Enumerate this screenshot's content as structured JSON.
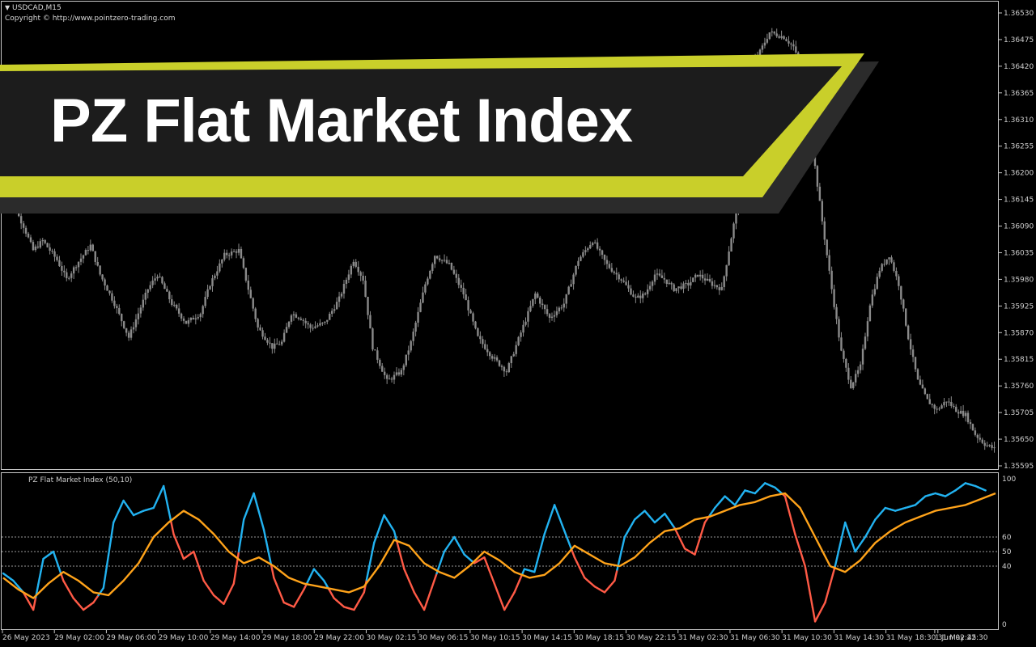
{
  "symbol_label": "USDCAD,M15",
  "copyright": "Copyright © http://www.pointzero-trading.com",
  "banner": {
    "title": "PZ Flat Market Index"
  },
  "colors": {
    "background": "#000000",
    "candle": "#8a8a8a",
    "banner_fill": "#1e1e1e",
    "banner_stripe": "#c9cf2a",
    "indicator_above": "#22b2f0",
    "indicator_below": "#ff5a46",
    "signal": "#ffa31a",
    "level_line": "#9a9a9a"
  },
  "chart_data": [
    {
      "type": "candlestick",
      "title": "USDCAD,M15",
      "y_ticks": [
        "1.36530",
        "1.36475",
        "1.36420",
        "1.36365",
        "1.36310",
        "1.36255",
        "1.36200",
        "1.36145",
        "1.36090",
        "1.36035",
        "1.35980",
        "1.35925",
        "1.35870",
        "1.35815",
        "1.35760",
        "1.35705",
        "1.35650",
        "1.35595"
      ],
      "ylim": [
        1.35595,
        1.3654
      ],
      "close_path": [
        [
          0,
          1.3615
        ],
        [
          4,
          1.3613
        ],
        [
          8,
          1.3609
        ],
        [
          12,
          1.3604
        ],
        [
          16,
          1.3606
        ],
        [
          22,
          1.3602
        ],
        [
          26,
          1.3598
        ],
        [
          30,
          1.3601
        ],
        [
          36,
          1.3605
        ],
        [
          40,
          1.3599
        ],
        [
          46,
          1.3593
        ],
        [
          52,
          1.3586
        ],
        [
          56,
          1.3591
        ],
        [
          60,
          1.3596
        ],
        [
          64,
          1.3599
        ],
        [
          70,
          1.3593
        ],
        [
          76,
          1.3589
        ],
        [
          82,
          1.3591
        ],
        [
          86,
          1.3597
        ],
        [
          92,
          1.3603
        ],
        [
          98,
          1.3604
        ],
        [
          102,
          1.3596
        ],
        [
          106,
          1.3588
        ],
        [
          112,
          1.3584
        ],
        [
          116,
          1.3585
        ],
        [
          120,
          1.3591
        ],
        [
          124,
          1.359
        ],
        [
          128,
          1.3588
        ],
        [
          134,
          1.3589
        ],
        [
          140,
          1.3594
        ],
        [
          146,
          1.3602
        ],
        [
          150,
          1.3598
        ],
        [
          154,
          1.3584
        ],
        [
          160,
          1.3577
        ],
        [
          166,
          1.3579
        ],
        [
          170,
          1.3585
        ],
        [
          176,
          1.3597
        ],
        [
          180,
          1.3603
        ],
        [
          186,
          1.3601
        ],
        [
          192,
          1.3595
        ],
        [
          198,
          1.3586
        ],
        [
          204,
          1.3582
        ],
        [
          210,
          1.3579
        ],
        [
          216,
          1.3587
        ],
        [
          222,
          1.3595
        ],
        [
          228,
          1.359
        ],
        [
          234,
          1.3593
        ],
        [
          240,
          1.3602
        ],
        [
          246,
          1.3606
        ],
        [
          252,
          1.3601
        ],
        [
          258,
          1.3598
        ],
        [
          264,
          1.3594
        ],
        [
          268,
          1.3595
        ],
        [
          272,
          1.3599
        ],
        [
          276,
          1.3598
        ],
        [
          280,
          1.3596
        ],
        [
          286,
          1.3597
        ],
        [
          290,
          1.3599
        ],
        [
          296,
          1.3597
        ],
        [
          300,
          1.3596
        ],
        [
          306,
          1.3612
        ],
        [
          310,
          1.364
        ],
        [
          316,
          1.3645
        ],
        [
          320,
          1.3649
        ],
        [
          326,
          1.3648
        ],
        [
          330,
          1.3646
        ],
        [
          334,
          1.364
        ],
        [
          338,
          1.3625
        ],
        [
          342,
          1.361
        ],
        [
          346,
          1.3596
        ],
        [
          350,
          1.3583
        ],
        [
          354,
          1.3576
        ],
        [
          358,
          1.358
        ],
        [
          362,
          1.3593
        ],
        [
          366,
          1.36
        ],
        [
          370,
          1.3603
        ],
        [
          374,
          1.3597
        ],
        [
          378,
          1.3586
        ],
        [
          382,
          1.3577
        ],
        [
          386,
          1.3573
        ],
        [
          390,
          1.3571
        ],
        [
          394,
          1.3573
        ],
        [
          398,
          1.3571
        ],
        [
          402,
          1.357
        ],
        [
          406,
          1.3566
        ],
        [
          410,
          1.3564
        ],
        [
          414,
          1.3563
        ]
      ],
      "close_path_note_units": [
        "bar index",
        "price"
      ]
    },
    {
      "type": "line",
      "title": "PZ Flat Market Index (50,10)",
      "ylim": [
        0,
        100
      ],
      "y_ticks": [
        "100",
        "60",
        "50",
        "40",
        "0"
      ],
      "levels": [
        60,
        50,
        40
      ],
      "x_tick_labels": [
        "26 May 2023",
        "29 May 02:00",
        "29 May 06:00",
        "29 May 10:00",
        "29 May 14:00",
        "29 May 18:00",
        "29 May 22:00",
        "30 May 02:15",
        "30 May 06:15",
        "30 May 10:15",
        "30 May 14:15",
        "30 May 18:15",
        "30 May 22:15",
        "31 May 02:30",
        "31 May 06:30",
        "31 May 10:30",
        "31 May 14:30",
        "31 May 18:30",
        "31 May 22:30",
        "1 Jun 02:45"
      ],
      "series": [
        {
          "role": "index",
          "values": [
            [
              0,
              35
            ],
            [
              4,
              30
            ],
            [
              8,
              22
            ],
            [
              12,
              10
            ],
            [
              16,
              45
            ],
            [
              20,
              50
            ],
            [
              24,
              30
            ],
            [
              28,
              18
            ],
            [
              32,
              10
            ],
            [
              36,
              15
            ],
            [
              40,
              25
            ],
            [
              44,
              70
            ],
            [
              48,
              85
            ],
            [
              52,
              75
            ],
            [
              56,
              78
            ],
            [
              60,
              80
            ],
            [
              64,
              95
            ],
            [
              68,
              62
            ],
            [
              72,
              45
            ],
            [
              76,
              50
            ],
            [
              80,
              30
            ],
            [
              84,
              20
            ],
            [
              88,
              14
            ],
            [
              92,
              28
            ],
            [
              96,
              72
            ],
            [
              100,
              90
            ],
            [
              104,
              65
            ],
            [
              108,
              32
            ],
            [
              112,
              15
            ],
            [
              116,
              12
            ],
            [
              120,
              24
            ],
            [
              124,
              38
            ],
            [
              128,
              30
            ],
            [
              132,
              18
            ],
            [
              136,
              12
            ],
            [
              140,
              10
            ],
            [
              144,
              22
            ],
            [
              148,
              56
            ],
            [
              152,
              75
            ],
            [
              156,
              64
            ],
            [
              160,
              38
            ],
            [
              164,
              22
            ],
            [
              168,
              10
            ],
            [
              172,
              30
            ],
            [
              176,
              50
            ],
            [
              180,
              60
            ],
            [
              184,
              48
            ],
            [
              188,
              42
            ],
            [
              192,
              46
            ],
            [
              196,
              28
            ],
            [
              200,
              10
            ],
            [
              204,
              22
            ],
            [
              208,
              38
            ],
            [
              212,
              36
            ],
            [
              216,
              62
            ],
            [
              220,
              82
            ],
            [
              224,
              64
            ],
            [
              228,
              46
            ],
            [
              232,
              32
            ],
            [
              236,
              26
            ],
            [
              240,
              22
            ],
            [
              244,
              30
            ],
            [
              248,
              60
            ],
            [
              252,
              72
            ],
            [
              256,
              78
            ],
            [
              260,
              70
            ],
            [
              264,
              76
            ],
            [
              268,
              66
            ],
            [
              272,
              52
            ],
            [
              276,
              48
            ],
            [
              280,
              70
            ],
            [
              284,
              80
            ],
            [
              288,
              88
            ],
            [
              292,
              82
            ],
            [
              296,
              92
            ],
            [
              300,
              90
            ],
            [
              304,
              97
            ],
            [
              308,
              94
            ],
            [
              312,
              88
            ],
            [
              316,
              62
            ],
            [
              320,
              40
            ],
            [
              324,
              2
            ],
            [
              328,
              15
            ],
            [
              332,
              40
            ],
            [
              336,
              70
            ],
            [
              340,
              50
            ],
            [
              344,
              60
            ],
            [
              348,
              72
            ],
            [
              352,
              80
            ],
            [
              356,
              78
            ],
            [
              360,
              80
            ],
            [
              364,
              82
            ],
            [
              368,
              88
            ],
            [
              372,
              90
            ],
            [
              376,
              88
            ],
            [
              380,
              92
            ],
            [
              384,
              97
            ],
            [
              388,
              95
            ],
            [
              392,
              92
            ]
          ]
        },
        {
          "role": "signal",
          "values": [
            [
              0,
              32
            ],
            [
              6,
              24
            ],
            [
              12,
              18
            ],
            [
              18,
              28
            ],
            [
              24,
              36
            ],
            [
              30,
              30
            ],
            [
              36,
              22
            ],
            [
              42,
              20
            ],
            [
              48,
              30
            ],
            [
              54,
              42
            ],
            [
              60,
              60
            ],
            [
              66,
              70
            ],
            [
              72,
              78
            ],
            [
              78,
              72
            ],
            [
              84,
              62
            ],
            [
              90,
              50
            ],
            [
              96,
              42
            ],
            [
              102,
              46
            ],
            [
              108,
              40
            ],
            [
              114,
              32
            ],
            [
              120,
              28
            ],
            [
              126,
              26
            ],
            [
              132,
              24
            ],
            [
              138,
              22
            ],
            [
              144,
              26
            ],
            [
              150,
              40
            ],
            [
              156,
              58
            ],
            [
              162,
              54
            ],
            [
              168,
              42
            ],
            [
              174,
              36
            ],
            [
              180,
              32
            ],
            [
              186,
              40
            ],
            [
              192,
              50
            ],
            [
              198,
              44
            ],
            [
              204,
              36
            ],
            [
              210,
              32
            ],
            [
              216,
              34
            ],
            [
              222,
              42
            ],
            [
              228,
              54
            ],
            [
              234,
              48
            ],
            [
              240,
              42
            ],
            [
              246,
              40
            ],
            [
              252,
              46
            ],
            [
              258,
              56
            ],
            [
              264,
              64
            ],
            [
              270,
              66
            ],
            [
              276,
              72
            ],
            [
              282,
              74
            ],
            [
              288,
              78
            ],
            [
              294,
              82
            ],
            [
              300,
              84
            ],
            [
              306,
              88
            ],
            [
              312,
              90
            ],
            [
              318,
              80
            ],
            [
              324,
              60
            ],
            [
              330,
              40
            ],
            [
              336,
              36
            ],
            [
              342,
              44
            ],
            [
              348,
              56
            ],
            [
              354,
              64
            ],
            [
              360,
              70
            ],
            [
              366,
              74
            ],
            [
              372,
              78
            ],
            [
              378,
              80
            ],
            [
              384,
              82
            ],
            [
              390,
              86
            ],
            [
              396,
              90
            ]
          ]
        }
      ]
    }
  ]
}
